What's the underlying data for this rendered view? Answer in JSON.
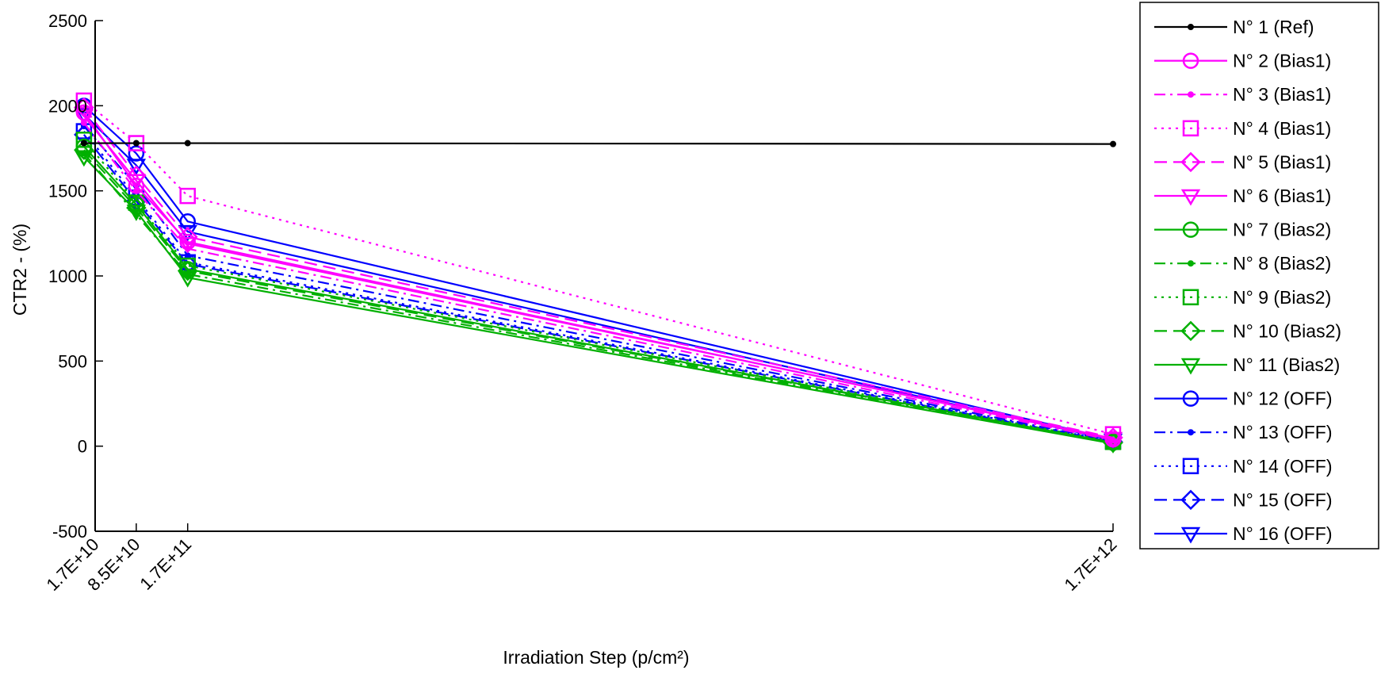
{
  "chart_data": {
    "type": "line",
    "xlabel": "Irradiation Step (p/cm²)",
    "ylabel": "CTR2 - (%)",
    "x": [
      17000000000.0,
      85000000000.0,
      170000000000.0,
      1700000000000.0
    ],
    "x_tick_labels": [
      "1.7E+10",
      "8.5E+10",
      "1.7E+11",
      "1.7E+12"
    ],
    "y_ticks": [
      -500,
      0,
      500,
      1000,
      1500,
      2000,
      2500
    ],
    "ylim": [
      -500,
      2500
    ],
    "grid": false,
    "legend_position": "outside-right",
    "colors": {
      "black": "#000000",
      "magenta": "#ff00ff",
      "green": "#00b000",
      "blue": "#0000ff"
    },
    "first_point_x_offset_fraction": -0.011,
    "series": [
      {
        "name": "N° 1 (Ref)",
        "color": "black",
        "dash": "solid",
        "marker": "point",
        "values": [
          1780,
          1780,
          1780,
          1775
        ]
      },
      {
        "name": "N° 2 (Bias1)",
        "color": "magenta",
        "dash": "solid",
        "marker": "circle",
        "values": [
          1960,
          1530,
          1200,
          40
        ]
      },
      {
        "name": "N° 3 (Bias1)",
        "color": "magenta",
        "dash": "dashdot",
        "marker": "point",
        "values": [
          1900,
          1500,
          1160,
          35
        ]
      },
      {
        "name": "N° 4 (Bias1)",
        "color": "magenta",
        "dash": "dot",
        "marker": "square",
        "values": [
          2030,
          1780,
          1470,
          70
        ]
      },
      {
        "name": "N° 5 (Bias1)",
        "color": "magenta",
        "dash": "dash",
        "marker": "diamond",
        "values": [
          1990,
          1590,
          1230,
          50
        ]
      },
      {
        "name": "N° 6 (Bias1)",
        "color": "magenta",
        "dash": "solid",
        "marker": "triangle",
        "values": [
          1940,
          1560,
          1190,
          45
        ]
      },
      {
        "name": "N° 7 (Bias2)",
        "color": "green",
        "dash": "solid",
        "marker": "circle",
        "values": [
          1760,
          1420,
          1040,
          20
        ]
      },
      {
        "name": "N° 8 (Bias2)",
        "color": "green",
        "dash": "dashdot",
        "marker": "point",
        "values": [
          1720,
          1360,
          1010,
          18
        ]
      },
      {
        "name": "N° 9 (Bias2)",
        "color": "green",
        "dash": "dot",
        "marker": "square",
        "values": [
          1800,
          1430,
          1060,
          25
        ]
      },
      {
        "name": "N° 10 (Bias2)",
        "color": "green",
        "dash": "dash",
        "marker": "diamond",
        "values": [
          1740,
          1400,
          1030,
          20
        ]
      },
      {
        "name": "N° 11 (Bias2)",
        "color": "green",
        "dash": "solid",
        "marker": "triangle",
        "values": [
          1700,
          1380,
          990,
          15
        ]
      },
      {
        "name": "N° 12 (OFF)",
        "color": "blue",
        "dash": "solid",
        "marker": "circle",
        "values": [
          2000,
          1720,
          1320,
          40
        ]
      },
      {
        "name": "N° 13 (OFF)",
        "color": "blue",
        "dash": "dashdot",
        "marker": "point",
        "values": [
          1880,
          1530,
          1120,
          30
        ]
      },
      {
        "name": "N° 14 (OFF)",
        "color": "blue",
        "dash": "dot",
        "marker": "square",
        "values": [
          1850,
          1460,
          1080,
          28
        ]
      },
      {
        "name": "N° 15 (OFF)",
        "color": "blue",
        "dash": "dash",
        "marker": "diamond",
        "values": [
          1830,
          1440,
          1070,
          25
        ]
      },
      {
        "name": "N° 16 (OFF)",
        "color": "blue",
        "dash": "solid",
        "marker": "triangle",
        "values": [
          1950,
          1650,
          1260,
          35
        ]
      }
    ]
  }
}
